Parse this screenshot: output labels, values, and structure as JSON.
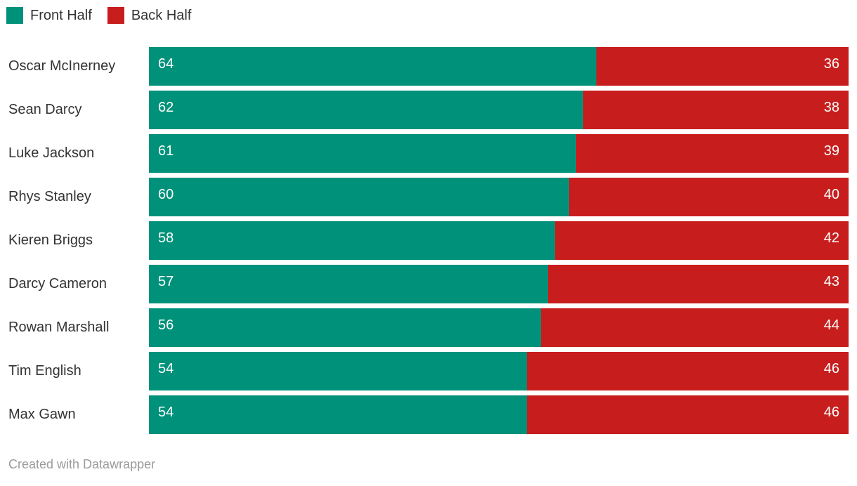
{
  "legend": {
    "items": [
      {
        "label": "Front Half",
        "color": "#00917a"
      },
      {
        "label": "Back Half",
        "color": "#c71e1d"
      }
    ]
  },
  "footer": {
    "text": "Created with Datawrapper"
  },
  "chart_data": {
    "type": "bar",
    "stacked": true,
    "orientation": "horizontal",
    "categories": [
      "Oscar McInerney",
      "Sean Darcy",
      "Luke Jackson",
      "Rhys Stanley",
      "Kieren Briggs",
      "Darcy Cameron",
      "Rowan Marshall",
      "Tim English",
      "Max Gawn"
    ],
    "series": [
      {
        "name": "Front Half",
        "color": "#00917a",
        "values": [
          64,
          62,
          61,
          60,
          58,
          57,
          56,
          54,
          54
        ]
      },
      {
        "name": "Back Half",
        "color": "#c71e1d",
        "values": [
          36,
          38,
          39,
          40,
          42,
          43,
          44,
          46,
          46
        ]
      }
    ],
    "xlim": [
      0,
      100
    ],
    "value_labels": "inside",
    "legend_position": "top-left",
    "grid": false,
    "footer": "Created with Datawrapper"
  }
}
